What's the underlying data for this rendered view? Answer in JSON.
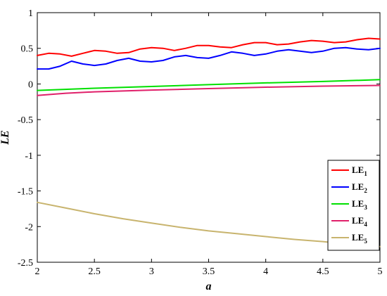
{
  "chart_data": {
    "type": "line",
    "title": "",
    "xlabel": "a",
    "ylabel": "LE",
    "xlim": [
      2,
      5
    ],
    "ylim": [
      -2.5,
      1
    ],
    "x_ticks": [
      2,
      2.5,
      3,
      3.5,
      4,
      4.5,
      5
    ],
    "x_tick_labels": [
      "2",
      "2.5",
      "3",
      "3.5",
      "4",
      "4.5",
      "5"
    ],
    "y_ticks": [
      1,
      0.5,
      0,
      -0.5,
      -1,
      -1.5,
      -2,
      -2.5
    ],
    "y_tick_labels": [
      "1",
      "0.5",
      "0",
      "-0.5",
      "-1",
      "-1.5",
      "-2",
      "-2.5"
    ],
    "grid": false,
    "legend_position": "bottom-right",
    "series": [
      {
        "name": "LE1",
        "legend_main": "LE",
        "legend_sub": "1",
        "color": "#ff0000",
        "points": [
          [
            2.0,
            0.4
          ],
          [
            2.1,
            0.43
          ],
          [
            2.2,
            0.42
          ],
          [
            2.3,
            0.39
          ],
          [
            2.4,
            0.43
          ],
          [
            2.5,
            0.47
          ],
          [
            2.6,
            0.46
          ],
          [
            2.7,
            0.43
          ],
          [
            2.8,
            0.44
          ],
          [
            2.9,
            0.49
          ],
          [
            3.0,
            0.51
          ],
          [
            3.1,
            0.5
          ],
          [
            3.2,
            0.47
          ],
          [
            3.3,
            0.5
          ],
          [
            3.4,
            0.54
          ],
          [
            3.5,
            0.54
          ],
          [
            3.6,
            0.52
          ],
          [
            3.7,
            0.51
          ],
          [
            3.8,
            0.55
          ],
          [
            3.9,
            0.58
          ],
          [
            4.0,
            0.58
          ],
          [
            4.1,
            0.55
          ],
          [
            4.2,
            0.56
          ],
          [
            4.3,
            0.59
          ],
          [
            4.4,
            0.61
          ],
          [
            4.5,
            0.6
          ],
          [
            4.6,
            0.58
          ],
          [
            4.7,
            0.59
          ],
          [
            4.8,
            0.62
          ],
          [
            4.9,
            0.64
          ],
          [
            5.0,
            0.63
          ]
        ]
      },
      {
        "name": "LE2",
        "legend_main": "LE",
        "legend_sub": "2",
        "color": "#0000ff",
        "points": [
          [
            2.0,
            0.21
          ],
          [
            2.1,
            0.21
          ],
          [
            2.2,
            0.25
          ],
          [
            2.3,
            0.32
          ],
          [
            2.4,
            0.28
          ],
          [
            2.5,
            0.26
          ],
          [
            2.6,
            0.28
          ],
          [
            2.7,
            0.33
          ],
          [
            2.8,
            0.36
          ],
          [
            2.9,
            0.32
          ],
          [
            3.0,
            0.31
          ],
          [
            3.1,
            0.33
          ],
          [
            3.2,
            0.38
          ],
          [
            3.3,
            0.4
          ],
          [
            3.4,
            0.37
          ],
          [
            3.5,
            0.36
          ],
          [
            3.6,
            0.4
          ],
          [
            3.7,
            0.45
          ],
          [
            3.8,
            0.43
          ],
          [
            3.9,
            0.4
          ],
          [
            4.0,
            0.42
          ],
          [
            4.1,
            0.46
          ],
          [
            4.2,
            0.48
          ],
          [
            4.3,
            0.46
          ],
          [
            4.4,
            0.44
          ],
          [
            4.5,
            0.46
          ],
          [
            4.6,
            0.5
          ],
          [
            4.7,
            0.51
          ],
          [
            4.8,
            0.49
          ],
          [
            4.9,
            0.48
          ],
          [
            5.0,
            0.5
          ]
        ]
      },
      {
        "name": "LE3",
        "legend_main": "LE",
        "legend_sub": "3",
        "color": "#00e000",
        "points": [
          [
            2.0,
            -0.09
          ],
          [
            2.5,
            -0.06
          ],
          [
            3.0,
            -0.035
          ],
          [
            3.5,
            -0.01
          ],
          [
            4.0,
            0.015
          ],
          [
            4.5,
            0.035
          ],
          [
            5.0,
            0.06
          ]
        ]
      },
      {
        "name": "LE4",
        "legend_main": "LE",
        "legend_sub": "4",
        "color": "#e0206a",
        "points": [
          [
            2.0,
            -0.16
          ],
          [
            2.25,
            -0.13
          ],
          [
            2.5,
            -0.11
          ],
          [
            3.0,
            -0.085
          ],
          [
            3.5,
            -0.065
          ],
          [
            4.0,
            -0.045
          ],
          [
            4.5,
            -0.03
          ],
          [
            5.0,
            -0.02
          ]
        ]
      },
      {
        "name": "LE5",
        "legend_main": "LE",
        "legend_sub": "5",
        "color": "#c8b46e",
        "points": [
          [
            2.0,
            -1.66
          ],
          [
            2.25,
            -1.74
          ],
          [
            2.5,
            -1.82
          ],
          [
            2.75,
            -1.89
          ],
          [
            3.0,
            -1.95
          ],
          [
            3.25,
            -2.01
          ],
          [
            3.5,
            -2.06
          ],
          [
            3.75,
            -2.1
          ],
          [
            4.0,
            -2.14
          ],
          [
            4.25,
            -2.18
          ],
          [
            4.5,
            -2.21
          ],
          [
            4.75,
            -2.25
          ],
          [
            5.0,
            -2.28
          ]
        ]
      }
    ]
  }
}
